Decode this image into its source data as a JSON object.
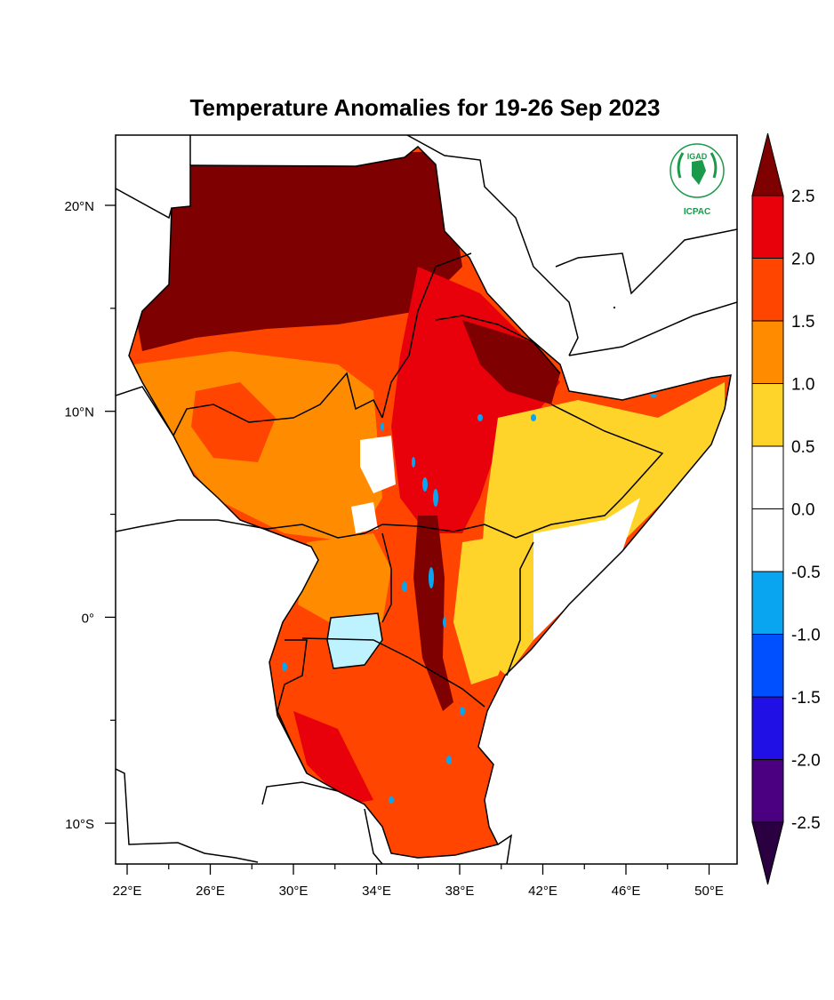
{
  "title": "Temperature Anomalies for 19-26 Sep 2023",
  "logo": {
    "top_text": "IGAD",
    "bottom_text": "ICPAC",
    "icon": "igad-icpac-logo",
    "color": "#1a9a4a"
  },
  "axes": {
    "lon_ticks": [
      "22°E",
      "26°E",
      "30°E",
      "34°E",
      "38°E",
      "42°E",
      "46°E",
      "50°E"
    ],
    "lat_ticks": [
      "20°N",
      "10°N",
      "0°",
      "10°S"
    ]
  },
  "colorbar": {
    "labels": [
      "2.5",
      "2.0",
      "1.5",
      "1.0",
      "0.5",
      "0.0",
      "-0.5",
      "-1.0",
      "-1.5",
      "-2.0",
      "-2.5"
    ],
    "colors": [
      "#7f0000",
      "#e8000b",
      "#ff4500",
      "#ff8c00",
      "#ffd42a",
      "#ffffff",
      "#ffffff",
      "#0aa5f0",
      "#0050ff",
      "#2010e6",
      "#4a0080",
      "#2a0040"
    ]
  },
  "legend_colors": {
    "extreme_warm": "#7f0000",
    "warm_high": "#e8000b",
    "warm_mid": "#ff4500",
    "warm_low": "#ff8c00",
    "slight_warm": "#ffd42a",
    "neutral": "#ffffff",
    "cool": "#0aa5f0",
    "lake": "#bff2ff"
  }
}
